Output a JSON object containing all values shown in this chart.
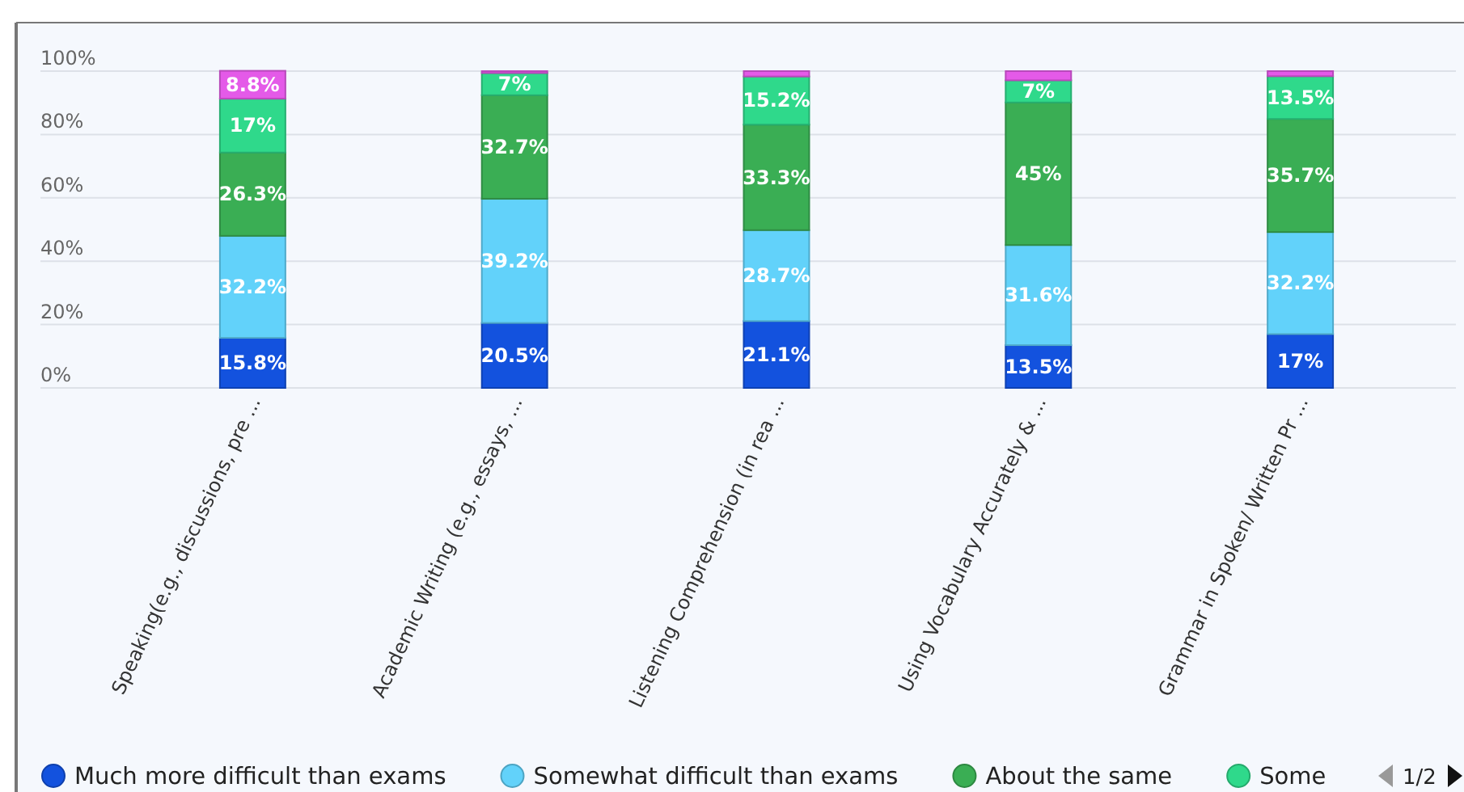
{
  "chart_data": {
    "type": "bar",
    "stacked": true,
    "categories": [
      "Speaking(e.g., discussions, pre ...",
      "Academic Writing (e.g., essays, ...",
      "Listening Comprehension (in rea ...",
      "Using Vocabulary Accurately & ...",
      "Grammar in Spoken/ Written Pr ..."
    ],
    "series": [
      {
        "name": "Much more difficult than exams",
        "color": "#1352de",
        "values": [
          15.8,
          20.5,
          21.1,
          13.5,
          17
        ],
        "value_labels": [
          "15.8%",
          "20.5%",
          "21.1%",
          "13.5%",
          "17%"
        ]
      },
      {
        "name": "Somewhat difficult than exams",
        "color": "#62d2fa",
        "values": [
          32.2,
          39.2,
          28.7,
          31.6,
          32.2
        ],
        "value_labels": [
          "32.2%",
          "39.2%",
          "28.7%",
          "31.6%",
          "32.2%"
        ]
      },
      {
        "name": "About the same",
        "color": "#3aae54",
        "values": [
          26.3,
          32.7,
          33.3,
          45,
          35.7
        ],
        "value_labels": [
          "26.3%",
          "32.7%",
          "33.3%",
          "45%",
          "35.7%"
        ]
      },
      {
        "name": "Some",
        "color": "#2fd98b",
        "values": [
          17,
          7,
          15.2,
          7,
          13.5
        ],
        "value_labels": [
          "17%",
          "7%",
          "15.2%",
          "7%",
          "13.5%"
        ]
      },
      {
        "color": "#e45ae8",
        "values": [
          8.8,
          0.6,
          1.7,
          2.9,
          1.6
        ],
        "value_labels": [
          "8.8%",
          null,
          null,
          null,
          null
        ]
      }
    ],
    "ylim": [
      0,
      100
    ],
    "yticks": [
      {
        "value": 0,
        "label": "0%"
      },
      {
        "value": 20,
        "label": "20%"
      },
      {
        "value": 40,
        "label": "40%"
      },
      {
        "value": 60,
        "label": "60%"
      },
      {
        "value": 80,
        "label": "80%"
      },
      {
        "value": 100,
        "label": "100%"
      }
    ],
    "grid": "y",
    "legend": "bottom",
    "annotations": [
      "1/2"
    ]
  }
}
